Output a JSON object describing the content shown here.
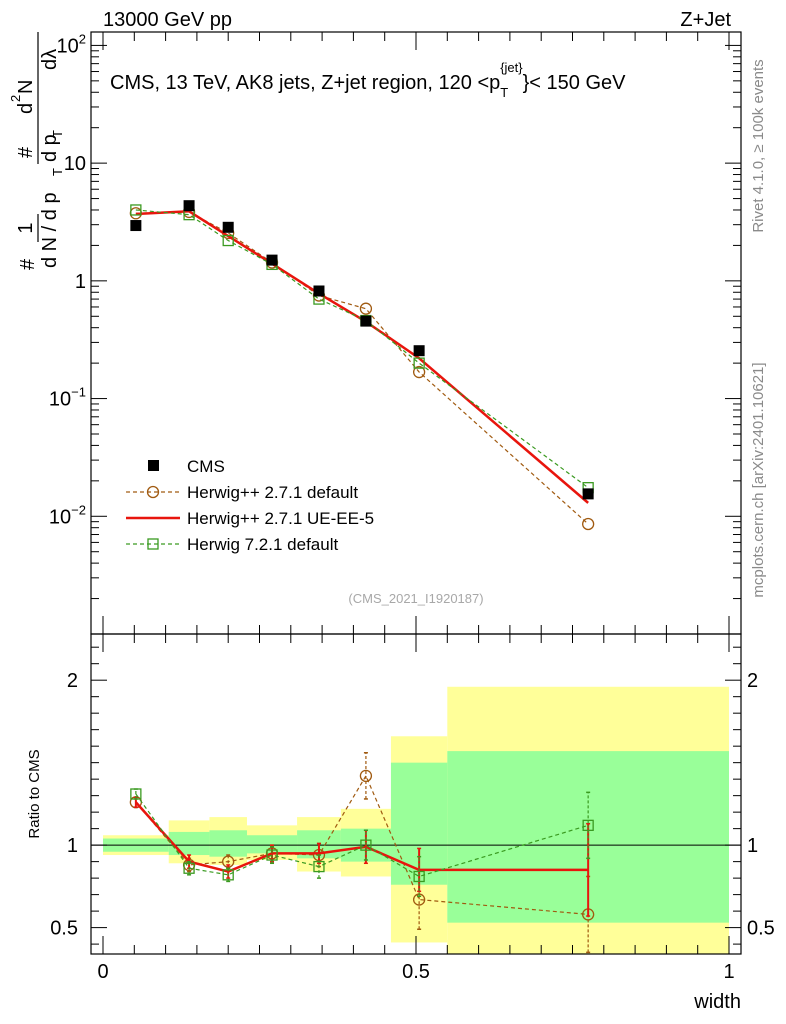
{
  "header": {
    "left": "13000 GeV pp",
    "right": "Z+Jet"
  },
  "side_labels": {
    "rivet": "Rivet 4.1.0, ≥ 100k events",
    "mcplots": "mcplots.cern.ch [arXiv:2401.10621]"
  },
  "chart_data": {
    "type": "line",
    "title": "CMS, 13 TeV, AK8 jets, Z+jet region, 120 <p",
    "title_sup": "{jet}",
    "title_sub": "T",
    "title_end": "}< 150 GeV",
    "ylabel_parts": [
      "#",
      "1",
      "d N / d p",
      "T",
      "#",
      "d p",
      "T",
      "d",
      "2",
      "N",
      "dλ"
    ],
    "ratio_ylabel": "Ratio to CMS",
    "xlabel": "width",
    "watermark": "(CMS_2021_I1920187)",
    "xlim": [
      0,
      1
    ],
    "main_ylim_log": [
      0.001,
      130
    ],
    "ratio_ylim": [
      0.34,
      2.28
    ],
    "main_yticks": [
      {
        "v": 100,
        "base": "10",
        "exp": "2"
      },
      {
        "v": 10,
        "base": "10",
        "exp": ""
      },
      {
        "v": 1,
        "base": "1",
        "exp": ""
      },
      {
        "v": 0.1,
        "base": "10",
        "exp": "−1"
      },
      {
        "v": 0.01,
        "base": "10",
        "exp": "−2"
      }
    ],
    "ratio_yticks": [
      {
        "v": 2,
        "label": "2"
      },
      {
        "v": 1,
        "label": "1"
      },
      {
        "v": 0.5,
        "label": "0.5"
      }
    ],
    "xticks": [
      {
        "v": 0,
        "label": "0"
      },
      {
        "v": 0.5,
        "label": "0.5"
      },
      {
        "v": 1,
        "label": "1"
      }
    ],
    "x": [
      0.0525,
      0.1375,
      0.2,
      0.27,
      0.345,
      0.42,
      0.505,
      0.775
    ],
    "bins": [
      [
        0,
        0.105
      ],
      [
        0.105,
        0.17
      ],
      [
        0.17,
        0.23
      ],
      [
        0.23,
        0.31
      ],
      [
        0.31,
        0.38
      ],
      [
        0.38,
        0.46
      ],
      [
        0.46,
        0.55
      ],
      [
        0.55,
        1.0
      ]
    ],
    "cms": {
      "name": "CMS",
      "values": [
        2.95,
        4.35,
        2.85,
        1.5,
        0.82,
        0.455,
        0.255,
        0.0155
      ],
      "band_inner": [
        [
          0.96,
          1.04
        ],
        [
          0.94,
          1.08
        ],
        [
          0.93,
          1.09
        ],
        [
          0.95,
          1.06
        ],
        [
          0.92,
          1.09
        ],
        [
          0.9,
          1.1
        ],
        [
          0.76,
          1.5
        ],
        [
          0.53,
          1.57
        ]
      ],
      "band_outer": [
        [
          0.94,
          1.06
        ],
        [
          0.89,
          1.15
        ],
        [
          0.88,
          1.17
        ],
        [
          0.91,
          1.12
        ],
        [
          0.84,
          1.17
        ],
        [
          0.81,
          1.22
        ],
        [
          0.41,
          1.66
        ],
        [
          0.34,
          1.96
        ]
      ]
    },
    "series": [
      {
        "name": "Herwig++ 2.7.1 default",
        "color": "#a05a10",
        "dash": true,
        "marker": "circle",
        "values": [
          3.75,
          3.85,
          2.55,
          1.43,
          0.75,
          0.58,
          0.168,
          0.0086
        ],
        "ratio": [
          1.26,
          0.88,
          0.9,
          0.95,
          0.94,
          1.42,
          0.67,
          0.58
        ],
        "ratio_err": [
          0.03,
          0.04,
          0.04,
          0.05,
          0.07,
          0.14,
          0.18,
          0.23
        ]
      },
      {
        "name": "Herwig++ 2.7.1 UE-EE-5",
        "color": "#e8150d",
        "dash": false,
        "marker": "none",
        "values": [
          3.7,
          3.9,
          2.4,
          1.4,
          0.78,
          0.45,
          0.22,
          0.013
        ],
        "ratio": [
          1.26,
          0.9,
          0.84,
          0.95,
          0.95,
          0.99,
          0.85,
          0.85
        ],
        "ratio_err": [
          0.03,
          0.04,
          0.04,
          0.05,
          0.06,
          0.1,
          0.13,
          0.28
        ]
      },
      {
        "name": "Herwig 7.2.1 default",
        "color": "#3a9a20",
        "dash": true,
        "marker": "square",
        "values": [
          4.0,
          3.65,
          2.2,
          1.38,
          0.7,
          0.46,
          0.2,
          0.0175
        ],
        "ratio": [
          1.31,
          0.86,
          0.82,
          0.94,
          0.87,
          1.0,
          0.81,
          1.12
        ],
        "ratio_err": [
          0.03,
          0.04,
          0.04,
          0.05,
          0.07,
          0.09,
          0.12,
          0.2
        ]
      }
    ]
  }
}
